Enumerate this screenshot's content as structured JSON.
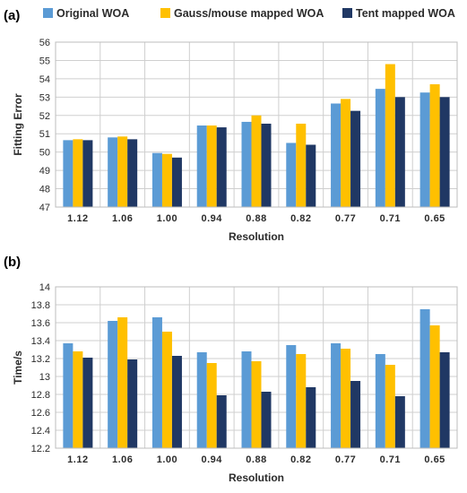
{
  "legend": {
    "items": [
      {
        "label": "Original WOA",
        "color": "#5b9bd5"
      },
      {
        "label": "Gauss/mouse mapped WOA",
        "color": "#ffc000"
      },
      {
        "label": "Tent mapped WOA",
        "color": "#203864"
      }
    ]
  },
  "chart_data": [
    {
      "panel": "(a)",
      "type": "bar",
      "categories": [
        "1.12",
        "1.06",
        "1.00",
        "0.94",
        "0.88",
        "0.82",
        "0.77",
        "0.71",
        "0.65"
      ],
      "series": [
        {
          "name": "Original WOA",
          "values": [
            50.65,
            50.8,
            49.95,
            51.45,
            51.65,
            50.5,
            52.65,
            53.45,
            53.25
          ]
        },
        {
          "name": "Gauss/mouse mapped WOA",
          "values": [
            50.7,
            50.85,
            49.9,
            51.45,
            52.0,
            51.55,
            52.9,
            54.8,
            53.7
          ]
        },
        {
          "name": "Tent mapped WOA",
          "values": [
            50.65,
            50.7,
            49.7,
            51.35,
            51.55,
            50.4,
            52.25,
            53.0,
            53.0
          ]
        }
      ],
      "xlabel": "Resolution",
      "ylabel": "Fitting Error",
      "ylim": [
        47,
        56
      ],
      "yticks": [
        "47",
        "48",
        "49",
        "50",
        "51",
        "52",
        "53",
        "54",
        "55",
        "56"
      ],
      "grid": true
    },
    {
      "panel": "(b)",
      "type": "bar",
      "categories": [
        "1.12",
        "1.06",
        "1.00",
        "0.94",
        "0.88",
        "0.82",
        "0.77",
        "0.71",
        "0.65"
      ],
      "series": [
        {
          "name": "Original WOA",
          "values": [
            13.37,
            13.62,
            13.66,
            13.27,
            13.28,
            13.35,
            13.37,
            13.25,
            13.75
          ]
        },
        {
          "name": "Gauss/mouse mapped WOA",
          "values": [
            13.28,
            13.66,
            13.5,
            13.15,
            13.17,
            13.25,
            13.31,
            13.13,
            13.57
          ]
        },
        {
          "name": "Tent mapped WOA",
          "values": [
            13.21,
            13.19,
            13.23,
            12.79,
            12.83,
            12.88,
            12.95,
            12.78,
            13.27
          ]
        }
      ],
      "xlabel": "Resolution",
      "ylabel": "Time/s",
      "ylim": [
        12.2,
        14
      ],
      "yticks": [
        "12.2",
        "12.4",
        "12.6",
        "12.8",
        "13",
        "13.2",
        "13.4",
        "13.6",
        "13.8",
        "14"
      ],
      "grid": true
    }
  ]
}
